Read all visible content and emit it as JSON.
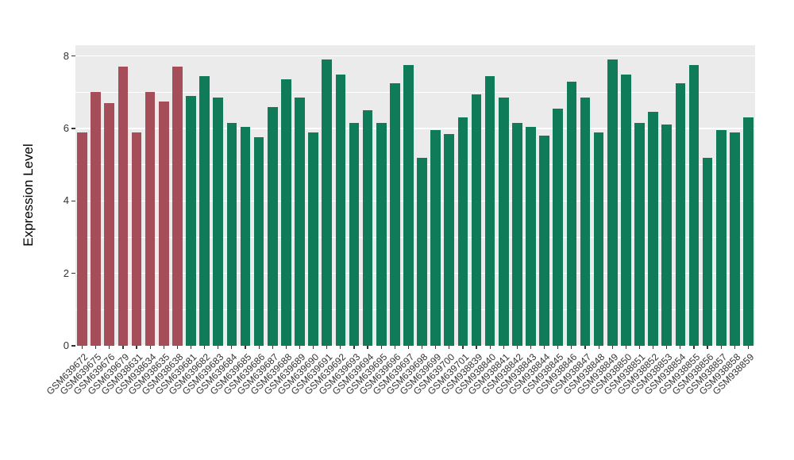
{
  "chart_data": {
    "type": "bar",
    "title": "",
    "xlabel": "",
    "ylabel": "Expression Level",
    "ylim": [
      0,
      8.3
    ],
    "yticks": [
      0,
      2,
      4,
      6,
      8
    ],
    "yticks_minor": [
      1,
      3,
      5,
      7
    ],
    "grid": true,
    "legend_position": "none",
    "panel_background": "#EBEBEB",
    "grid_major_color": "#FFFFFF",
    "grid_minor_color": "#FFFFFF",
    "categories": [
      "GSM639672",
      "GSM639675",
      "GSM639676",
      "GSM639679",
      "GSM938631",
      "GSM938634",
      "GSM938635",
      "GSM938638",
      "GSM639681",
      "GSM639682",
      "GSM639683",
      "GSM639684",
      "GSM639685",
      "GSM639686",
      "GSM639687",
      "GSM639688",
      "GSM639689",
      "GSM639690",
      "GSM639691",
      "GSM639692",
      "GSM639693",
      "GSM639694",
      "GSM639695",
      "GSM639696",
      "GSM639697",
      "GSM639698",
      "GSM639699",
      "GSM639700",
      "GSM639701",
      "GSM938839",
      "GSM938840",
      "GSM938841",
      "GSM938842",
      "GSM938843",
      "GSM938844",
      "GSM938845",
      "GSM938846",
      "GSM938847",
      "GSM938848",
      "GSM938849",
      "GSM938850",
      "GSM938851",
      "GSM938852",
      "GSM938853",
      "GSM938854",
      "GSM938855",
      "GSM938856",
      "GSM938857",
      "GSM938858",
      "GSM938859"
    ],
    "values": [
      5.9,
      7.0,
      6.7,
      7.7,
      5.9,
      7.0,
      6.75,
      7.7,
      6.9,
      7.45,
      6.85,
      6.15,
      6.05,
      5.75,
      6.6,
      7.35,
      6.85,
      5.9,
      7.9,
      7.5,
      6.15,
      6.5,
      6.15,
      7.25,
      7.75,
      5.2,
      5.95,
      5.85,
      6.3,
      6.95,
      7.45,
      6.85,
      6.15,
      6.05,
      5.8,
      6.55,
      7.3,
      6.85,
      5.9,
      7.9,
      7.5,
      6.15,
      6.45,
      6.1,
      7.25,
      7.75,
      5.2,
      5.95,
      5.9,
      6.3
    ],
    "bar_color_groups": [
      {
        "color": "#A64D5A",
        "from_index": 0,
        "to_index": 7
      },
      {
        "color": "#0F7B58",
        "from_index": 8,
        "to_index": 49
      }
    ]
  }
}
